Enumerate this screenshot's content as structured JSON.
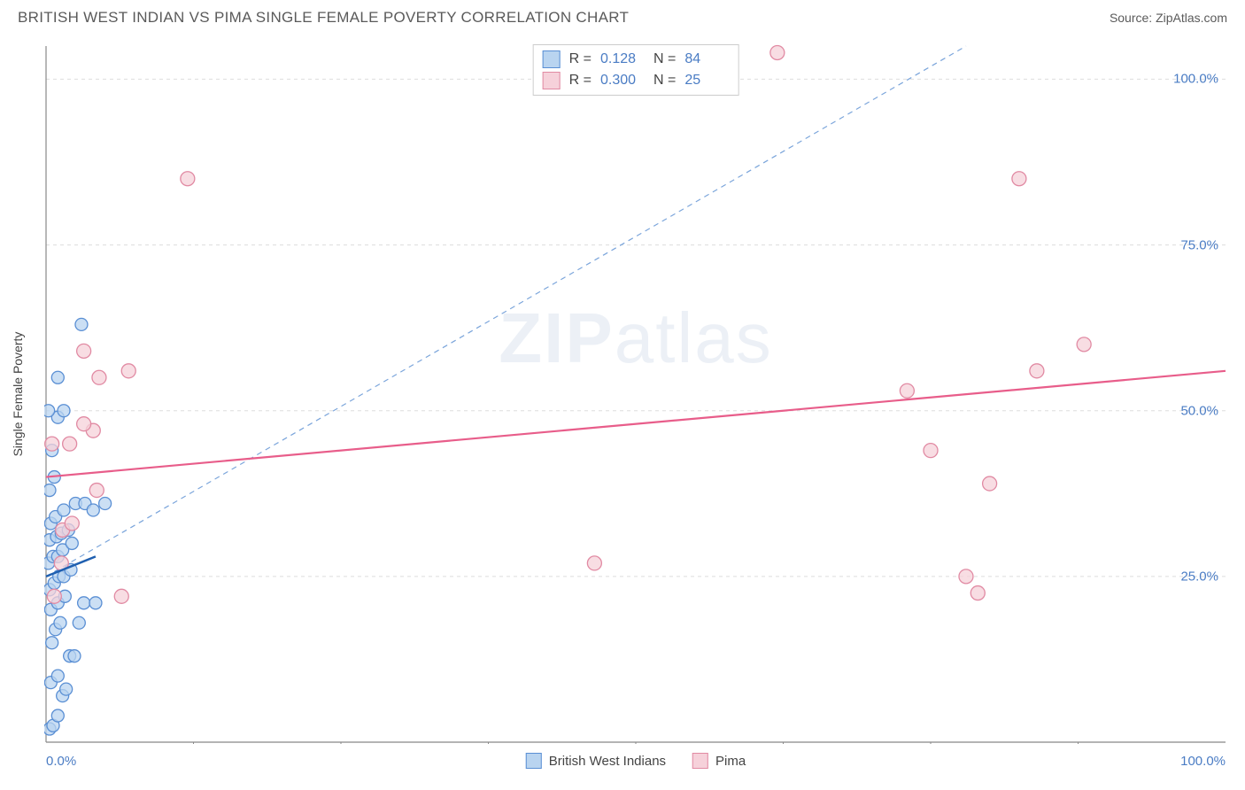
{
  "header": {
    "title": "BRITISH WEST INDIAN VS PIMA SINGLE FEMALE POVERTY CORRELATION CHART",
    "source": "Source: ZipAtlas.com"
  },
  "chart": {
    "type": "scatter",
    "y_axis_label": "Single Female Poverty",
    "xlim": [
      0,
      100
    ],
    "ylim": [
      0,
      105
    ],
    "x_ticks": [
      0,
      50,
      100
    ],
    "x_tick_labels": [
      "0.0%",
      "",
      "100.0%"
    ],
    "y_ticks": [
      25,
      50,
      75,
      100
    ],
    "y_tick_labels": [
      "25.0%",
      "50.0%",
      "75.0%",
      "100.0%"
    ],
    "grid_color": "#dddddd",
    "axis_color": "#888888",
    "minor_tick_positions_x": [
      12.5,
      25,
      37.5,
      50,
      62.5,
      75,
      87.5
    ],
    "background_color": "#ffffff",
    "tick_label_color": "#4a7cc4",
    "tick_label_fontsize": 15,
    "axis_label_fontsize": 14,
    "axis_label_color": "#444444",
    "watermark": {
      "text_bold": "ZIP",
      "text_light": "atlas"
    },
    "series": [
      {
        "name": "British West Indians",
        "marker_fill": "#b9d4f0",
        "marker_stroke": "#5a8fd4",
        "marker_radius": 7,
        "marker_opacity": 0.75,
        "trend": {
          "x1": 0,
          "y1": 25,
          "x2": 4.2,
          "y2": 28,
          "color": "#1f5fb0",
          "width": 2.5,
          "dash": "none"
        },
        "diag": {
          "x1": 0,
          "y1": 25,
          "x2": 78,
          "y2": 105,
          "color": "#7ba5db",
          "width": 1.2,
          "dash": "6,5"
        },
        "points": [
          [
            0.3,
            2
          ],
          [
            0.6,
            2.5
          ],
          [
            1.0,
            4
          ],
          [
            1.4,
            7
          ],
          [
            1.7,
            8
          ],
          [
            0.4,
            9
          ],
          [
            1.0,
            10
          ],
          [
            2.0,
            13
          ],
          [
            2.4,
            13
          ],
          [
            0.5,
            15
          ],
          [
            0.8,
            17
          ],
          [
            1.2,
            18
          ],
          [
            2.8,
            18
          ],
          [
            0.4,
            20
          ],
          [
            1.0,
            21
          ],
          [
            1.6,
            22
          ],
          [
            3.2,
            21
          ],
          [
            4.2,
            21
          ],
          [
            0.3,
            23
          ],
          [
            0.7,
            24
          ],
          [
            1.1,
            25
          ],
          [
            1.5,
            25
          ],
          [
            2.1,
            26
          ],
          [
            0.2,
            27
          ],
          [
            0.6,
            28
          ],
          [
            1.0,
            28
          ],
          [
            1.4,
            29
          ],
          [
            2.2,
            30
          ],
          [
            0.3,
            30.5
          ],
          [
            0.9,
            31
          ],
          [
            1.3,
            31.5
          ],
          [
            1.9,
            32
          ],
          [
            0.4,
            33
          ],
          [
            0.8,
            34
          ],
          [
            1.5,
            35
          ],
          [
            2.5,
            36
          ],
          [
            3.3,
            36
          ],
          [
            4.0,
            35
          ],
          [
            5.0,
            36
          ],
          [
            0.3,
            38
          ],
          [
            0.7,
            40
          ],
          [
            0.5,
            44
          ],
          [
            1.0,
            49
          ],
          [
            1.5,
            50
          ],
          [
            0.2,
            50
          ],
          [
            1.0,
            55
          ],
          [
            3.0,
            63
          ]
        ]
      },
      {
        "name": "Pima",
        "marker_fill": "#f6d1da",
        "marker_stroke": "#e18aa3",
        "marker_radius": 8,
        "marker_opacity": 0.75,
        "trend": {
          "x1": 0,
          "y1": 40,
          "x2": 100,
          "y2": 56,
          "color": "#e85d8a",
          "width": 2.2,
          "dash": "none"
        },
        "points": [
          [
            0.7,
            22
          ],
          [
            6.4,
            22
          ],
          [
            1.3,
            27
          ],
          [
            1.4,
            32
          ],
          [
            2.2,
            33
          ],
          [
            4.3,
            38
          ],
          [
            0.5,
            45
          ],
          [
            2.0,
            45
          ],
          [
            4.0,
            47
          ],
          [
            3.2,
            48
          ],
          [
            4.5,
            55
          ],
          [
            7.0,
            56
          ],
          [
            3.2,
            59
          ],
          [
            12.0,
            85
          ],
          [
            46.5,
            27
          ],
          [
            73.0,
            53
          ],
          [
            75.0,
            44
          ],
          [
            78.0,
            25
          ],
          [
            79.0,
            22.5
          ],
          [
            80.0,
            39
          ],
          [
            84.0,
            56
          ],
          [
            88.0,
            60
          ],
          [
            82.5,
            85
          ],
          [
            62.0,
            104
          ]
        ]
      }
    ],
    "stats_box": {
      "rows": [
        {
          "swatch_fill": "#b9d4f0",
          "swatch_stroke": "#5a8fd4",
          "r": "0.128",
          "n": "84"
        },
        {
          "swatch_fill": "#f6d1da",
          "swatch_stroke": "#e18aa3",
          "r": "0.300",
          "n": "25"
        }
      ]
    },
    "bottom_legend": [
      {
        "swatch_fill": "#b9d4f0",
        "swatch_stroke": "#5a8fd4",
        "label": "British West Indians"
      },
      {
        "swatch_fill": "#f6d1da",
        "swatch_stroke": "#e18aa3",
        "label": "Pima"
      }
    ]
  }
}
